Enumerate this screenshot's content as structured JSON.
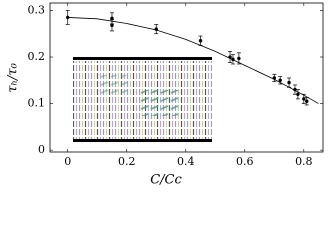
{
  "chart_data": {
    "type": "scatter",
    "xlabel": "C/Cc",
    "ylabel": "τₕ/τ₀",
    "xlim": [
      -0.06,
      0.865
    ],
    "ylim": [
      -0.004,
      0.316
    ],
    "xticks": [
      0,
      0.2,
      0.4,
      0.6,
      0.8
    ],
    "yticks": [
      0,
      0.1,
      0.2,
      0.3
    ],
    "color": "#000000",
    "series": [
      {
        "x": [
          0,
          0.15,
          0.15,
          0.3,
          0.45,
          0.55,
          0.56,
          0.58,
          0.7,
          0.72,
          0.75,
          0.77,
          0.78,
          0.8,
          0.81
        ],
        "values": [
          0.285,
          0.283,
          0.268,
          0.26,
          0.235,
          0.2,
          0.195,
          0.197,
          0.155,
          0.15,
          0.145,
          0.13,
          0.12,
          0.11,
          0.105
        ],
        "errors": [
          0.015,
          0.012,
          0.012,
          0.01,
          0.01,
          0.012,
          0.01,
          0.012,
          0.008,
          0.008,
          0.01,
          0.01,
          0.01,
          0.01,
          0.008
        ]
      }
    ],
    "fit": {
      "x": [
        0,
        0.1,
        0.2,
        0.3,
        0.4,
        0.5,
        0.6,
        0.7,
        0.8,
        0.85
      ],
      "values": [
        0.285,
        0.282,
        0.272,
        0.258,
        0.238,
        0.212,
        0.182,
        0.152,
        0.118,
        0.1
      ]
    }
  }
}
